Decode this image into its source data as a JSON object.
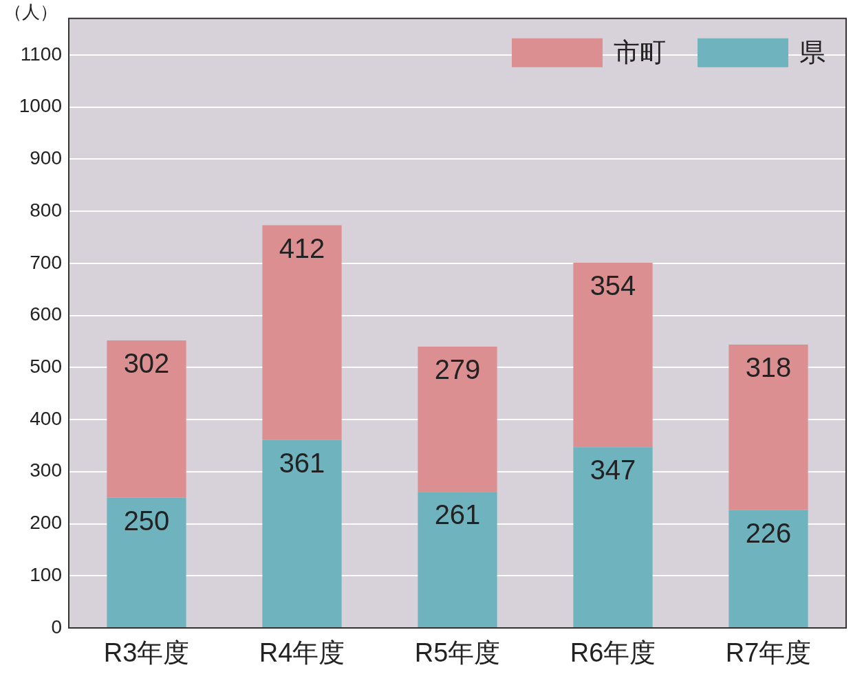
{
  "chart_data": {
    "type": "bar",
    "stacked": true,
    "ylabel": "（人）",
    "categories": [
      "R3年度",
      "R4年度",
      "R5年度",
      "R6年度",
      "R7年度"
    ],
    "series": [
      {
        "name": "県",
        "color": "#6fb3bf",
        "values": [
          250,
          361,
          261,
          347,
          226
        ]
      },
      {
        "name": "市町",
        "color": "#dc8f91",
        "values": [
          302,
          412,
          279,
          354,
          318
        ]
      }
    ],
    "ylim": [
      0,
      1170
    ],
    "yticks": [
      0,
      100,
      200,
      300,
      400,
      500,
      600,
      700,
      800,
      900,
      1000,
      1100
    ],
    "grid": "y",
    "legend": "top right",
    "data_labels": true
  }
}
